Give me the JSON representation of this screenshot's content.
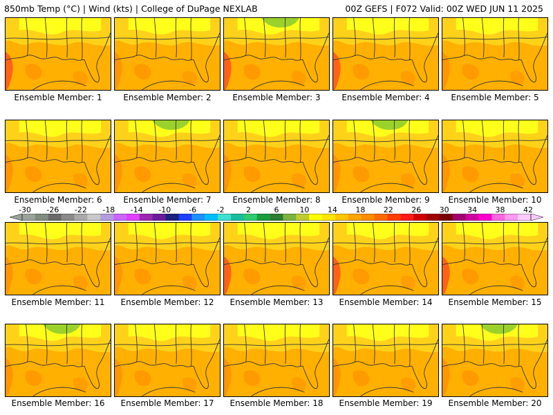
{
  "header": {
    "left": "850mb Temp (°C) | Wind (kts) | College of DuPage NEXLAB",
    "right": "00Z GEFS | F072 Valid: 00Z WED JUN 11 2025"
  },
  "panels": [
    {
      "caption": "Ensemble Member: 1",
      "north": "yellow",
      "west": "hot"
    },
    {
      "caption": "Ensemble Member: 2",
      "north": "yellow",
      "west": "warm"
    },
    {
      "caption": "Ensemble Member: 3",
      "north": "green",
      "west": "hot"
    },
    {
      "caption": "Ensemble Member: 4",
      "north": "yellow",
      "west": "hot"
    },
    {
      "caption": "Ensemble Member: 5",
      "north": "yellow",
      "west": "warm"
    },
    {
      "caption": "Ensemble Member: 6",
      "north": "yellow",
      "west": "warm"
    },
    {
      "caption": "Ensemble Member: 7",
      "north": "green",
      "west": "warm"
    },
    {
      "caption": "Ensemble Member: 8",
      "north": "yellow",
      "west": "warm"
    },
    {
      "caption": "Ensemble Member: 9",
      "north": "green",
      "west": "warm"
    },
    {
      "caption": "Ensemble Member: 10",
      "north": "yellow",
      "west": "warm"
    },
    {
      "caption": "Ensemble Member: 11",
      "north": "yellow",
      "west": "warm"
    },
    {
      "caption": "Ensemble Member: 12",
      "north": "yellow",
      "west": "warm"
    },
    {
      "caption": "Ensemble Member: 13",
      "north": "yellow",
      "west": "hot"
    },
    {
      "caption": "Ensemble Member: 14",
      "north": "yellow",
      "west": "hot"
    },
    {
      "caption": "Ensemble Member: 15",
      "north": "yellow",
      "west": "hot"
    },
    {
      "caption": "Ensemble Member: 16",
      "north": "green",
      "west": "warm"
    },
    {
      "caption": "Ensemble Member: 17",
      "north": "yellow",
      "west": "warm"
    },
    {
      "caption": "Ensemble Member: 18",
      "north": "yellow",
      "west": "warm"
    },
    {
      "caption": "Ensemble Member: 19",
      "north": "yellow",
      "west": "warm"
    },
    {
      "caption": "Ensemble Member: 20",
      "north": "green",
      "west": "warm"
    }
  ],
  "colorbar": {
    "labels": [
      "-30",
      "-26",
      "-22",
      "-18",
      "-14",
      "-10",
      "-6",
      "-2",
      "2",
      "6",
      "10",
      "14",
      "18",
      "22",
      "26",
      "30",
      "34",
      "38",
      "42"
    ],
    "colors": [
      "#9aa39a",
      "#7f8c7f",
      "#6a6a6a",
      "#8a8a8a",
      "#a9a9a9",
      "#c8c8c8",
      "#b39ddb",
      "#cc66ff",
      "#e040fb",
      "#9c27b0",
      "#6a1b9a",
      "#1a237e",
      "#1e40ff",
      "#1e90ff",
      "#00bfff",
      "#40e0d0",
      "#1abc9c",
      "#2ecc71",
      "#1b9e3e",
      "#2e7d32",
      "#7cb342",
      "#c0ca33",
      "#ffff00",
      "#ffe600",
      "#ffc400",
      "#ffa500",
      "#ff8c00",
      "#ff6a00",
      "#ff4000",
      "#ff1a1a",
      "#d10000",
      "#a00000",
      "#7a0000",
      "#a0006e",
      "#d100a0",
      "#ff00cc",
      "#ff66e0",
      "#ff99f0",
      "#ffccff"
    ]
  },
  "map_colors": {
    "yellow": "#ffff1a",
    "lightorange": "#ffd21a",
    "orange": "#ffb000",
    "darkorange": "#ff9200",
    "red": "#ff5a1a",
    "green": "#9bd12b",
    "line": "#333333"
  }
}
